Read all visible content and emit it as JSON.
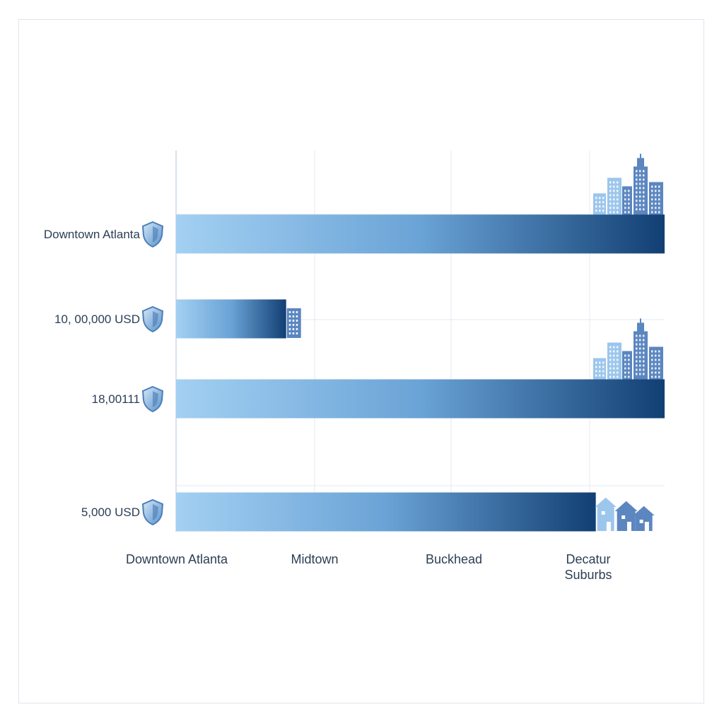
{
  "chart_data": {
    "type": "bar",
    "orientation": "horizontal",
    "categories": [
      "Downtown Atlanta",
      "10, 00,000 USD",
      "18,00111",
      "5,000 USD"
    ],
    "values": [
      3.55,
      0.8,
      3.55,
      3.05
    ],
    "x_tick_labels": [
      [
        "Downtown Atlanta"
      ],
      [
        "Midtown"
      ],
      [
        "Buckhead"
      ],
      [
        "Decatur",
        "Suburbs"
      ]
    ],
    "xlim": [
      0,
      3.55
    ],
    "grid": true,
    "bar_end_icons": [
      "city-skyline-icon",
      "building-icon",
      "city-skyline-icon",
      "houses-icon"
    ],
    "label_icon": "shield-icon",
    "colors": {
      "bar_start": "#a3d0f2",
      "bar_mid": "#6aa3d6",
      "bar_end": "#123f73",
      "icon_blue": "#5b86c0",
      "icon_light": "#9cc6ec",
      "grid": "#e3e9f0",
      "text": "#2c3e55"
    }
  }
}
